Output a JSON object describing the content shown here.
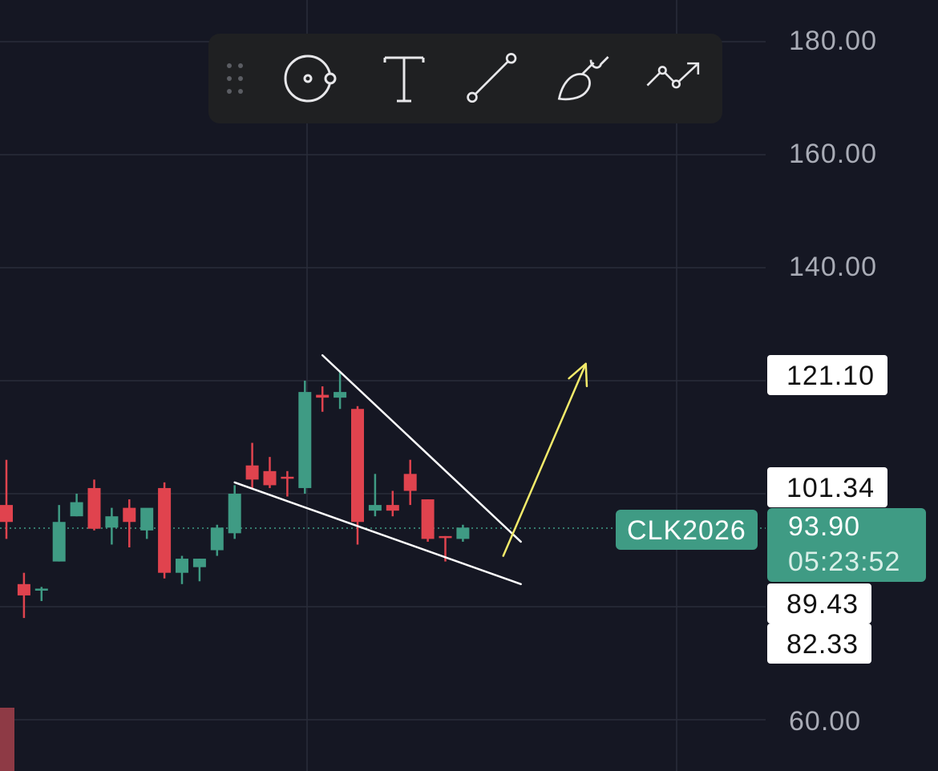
{
  "toolbar": {
    "tools": [
      {
        "name": "drag-handle-icon"
      },
      {
        "name": "circle-point-icon"
      },
      {
        "name": "text-icon"
      },
      {
        "name": "trend-line-icon"
      },
      {
        "name": "brush-icon"
      },
      {
        "name": "path-arrow-icon"
      }
    ]
  },
  "colors": {
    "background": "#151723",
    "grid": "#2a2d3a",
    "up": "#3f9b84",
    "down": "#e0434e",
    "pattern_line": "#ffffff",
    "projection_arrow": "#f2ea6a",
    "price_line": "#3f9b84"
  },
  "chart_data": {
    "type": "candlestick",
    "symbol": "CLK2026",
    "last_price": "93.90",
    "countdown": "05:23:52",
    "y_ticks": [
      "180.00",
      "160.00",
      "140.00",
      "60.00"
    ],
    "level_labels": [
      "121.10",
      "101.34",
      "89.43",
      "82.33"
    ],
    "ylim": [
      60,
      180
    ],
    "candles": [
      {
        "o": 98,
        "h": 106,
        "l": 92,
        "c": 95,
        "dir": "down",
        "x_index": 0
      },
      {
        "o": 84,
        "h": 86,
        "l": 78,
        "c": 82,
        "dir": "down",
        "x_index": 1
      },
      {
        "o": 83,
        "h": 83.5,
        "l": 81,
        "c": 83.2,
        "dir": "up",
        "x_index": 2
      },
      {
        "o": 88,
        "h": 98,
        "l": 88,
        "c": 95,
        "dir": "up",
        "x_index": 3
      },
      {
        "o": 96,
        "h": 100,
        "l": 96,
        "c": 98.5,
        "dir": "up",
        "x_index": 4
      },
      {
        "o": 101,
        "h": 102.5,
        "l": 93.5,
        "c": 93.8,
        "dir": "down",
        "x_index": 5
      },
      {
        "o": 94,
        "h": 97.5,
        "l": 91,
        "c": 96,
        "dir": "up",
        "x_index": 6
      },
      {
        "o": 97.5,
        "h": 99,
        "l": 90.5,
        "c": 95,
        "dir": "down",
        "x_index": 7
      },
      {
        "o": 93.5,
        "h": 97,
        "l": 92,
        "c": 97.5,
        "dir": "up",
        "x_index": 8
      },
      {
        "o": 101,
        "h": 102,
        "l": 85,
        "c": 86,
        "dir": "down",
        "x_index": 9
      },
      {
        "o": 86,
        "h": 89,
        "l": 84,
        "c": 88.5,
        "dir": "up",
        "x_index": 10
      },
      {
        "o": 87,
        "h": 88.5,
        "l": 84.5,
        "c": 88.5,
        "dir": "up",
        "x_index": 11
      },
      {
        "o": 90,
        "h": 94.5,
        "l": 89,
        "c": 94,
        "dir": "up",
        "x_index": 12
      },
      {
        "o": 93,
        "h": 101.5,
        "l": 92,
        "c": 100,
        "dir": "up",
        "x_index": 13
      },
      {
        "o": 105,
        "h": 109,
        "l": 101,
        "c": 102.5,
        "dir": "down",
        "x_index": 14
      },
      {
        "o": 104,
        "h": 106.5,
        "l": 101,
        "c": 101.5,
        "dir": "down",
        "x_index": 15
      },
      {
        "o": 103,
        "h": 104,
        "l": 99.5,
        "c": 103,
        "dir": "down",
        "x_index": 16
      },
      {
        "o": 101,
        "h": 120,
        "l": 100,
        "c": 118,
        "dir": "up",
        "x_index": 17
      },
      {
        "o": 117.5,
        "h": 119,
        "l": 114.5,
        "c": 117,
        "dir": "down",
        "x_index": 18
      },
      {
        "o": 117,
        "h": 121.5,
        "l": 115,
        "c": 118,
        "dir": "up",
        "x_index": 19
      },
      {
        "o": 115,
        "h": 115.5,
        "l": 91,
        "c": 95,
        "dir": "down",
        "x_index": 20
      },
      {
        "o": 97,
        "h": 103.5,
        "l": 96,
        "c": 98,
        "dir": "up",
        "x_index": 21
      },
      {
        "o": 98,
        "h": 100.5,
        "l": 96,
        "c": 97,
        "dir": "down",
        "x_index": 22
      },
      {
        "o": 103.5,
        "h": 106,
        "l": 98,
        "c": 100.5,
        "dir": "down",
        "x_index": 23
      },
      {
        "o": 99,
        "h": 99,
        "l": 91.5,
        "c": 92,
        "dir": "down",
        "x_index": 24
      },
      {
        "o": 92.5,
        "h": 92.5,
        "l": 88,
        "c": 92.5,
        "dir": "down",
        "x_index": 25
      },
      {
        "o": 92,
        "h": 94.5,
        "l": 91.5,
        "c": 94,
        "dir": "up",
        "x_index": 26
      }
    ],
    "drawings": {
      "upper_trendline": {
        "from": {
          "x_index": 18.0,
          "price": 124.5
        },
        "to": {
          "x_index": 29.3,
          "price": 91.5
        }
      },
      "lower_trendline": {
        "from": {
          "x_index": 13.0,
          "price": 102.0
        },
        "to": {
          "x_index": 29.3,
          "price": 84.0
        }
      },
      "projection_arrow": {
        "from": {
          "x_index": 28.3,
          "price": 89.0
        },
        "to": {
          "x_index": 33.0,
          "price": 123.0
        }
      }
    },
    "grid": true
  }
}
